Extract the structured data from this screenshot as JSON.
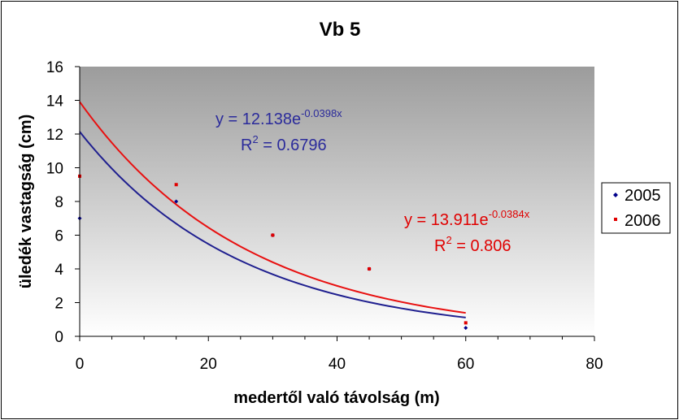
{
  "chart_data": {
    "type": "scatter",
    "title": "Vb 5",
    "xlabel": "medertől való távolság (m)",
    "ylabel": "üledék vastagság (cm)",
    "xlim": [
      0,
      80
    ],
    "ylim": [
      0,
      16
    ],
    "xticks": [
      0,
      20,
      40,
      60,
      80
    ],
    "yticks": [
      0,
      2,
      4,
      6,
      8,
      10,
      12,
      14,
      16
    ],
    "grid": false,
    "legend_position": "right",
    "background": "gradient grey to white",
    "series": [
      {
        "name": "2005",
        "color": "#00008b",
        "marker": "diamond",
        "x": [
          0,
          15,
          30,
          45,
          60
        ],
        "y": [
          7,
          8,
          6,
          4,
          0.5
        ],
        "trendline": {
          "type": "exponential",
          "a": 12.138,
          "b": -0.0398,
          "x_range": [
            0,
            60
          ],
          "color": "#1f1f8f",
          "equation_base": "y = 12.138e",
          "equation_exp": "-0.0398x",
          "r2_base": "R",
          "r2_sup": "2",
          "r2_value": " = 0.6796"
        }
      },
      {
        "name": "2006",
        "color": "#e00000",
        "marker": "square",
        "x": [
          0,
          15,
          30,
          45,
          60
        ],
        "y": [
          9.5,
          9,
          6,
          4,
          0.8
        ],
        "trendline": {
          "type": "exponential",
          "a": 13.911,
          "b": -0.0384,
          "x_range": [
            0,
            60
          ],
          "color": "#e81010",
          "equation_base": "y = 13.911e",
          "equation_exp": "-0.0384x",
          "r2_base": "R",
          "r2_sup": "2",
          "r2_value": " = 0.806"
        }
      }
    ]
  }
}
